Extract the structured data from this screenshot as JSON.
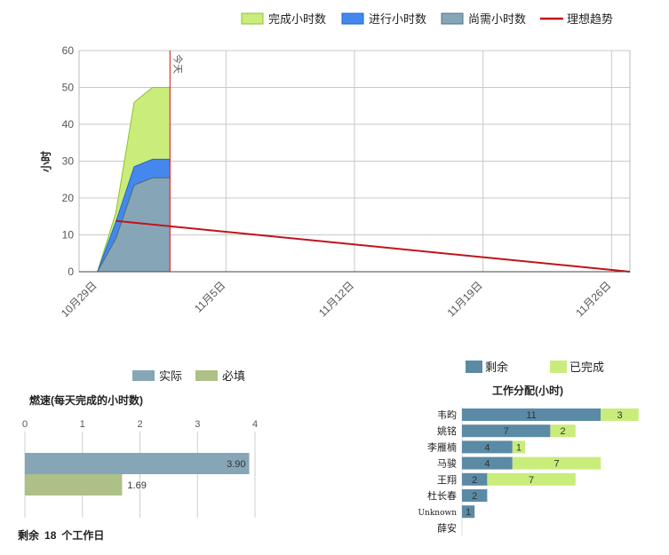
{
  "burndown": {
    "chart_data": {
      "type": "area",
      "ylabel": "小时",
      "ylim": [
        0,
        60
      ],
      "yticks": [
        0,
        10,
        20,
        30,
        40,
        50,
        60
      ],
      "xticks": [
        "10月29日",
        "11月5日",
        "11月12日",
        "11月19日",
        "11月26日"
      ],
      "xrange_days": [
        -1,
        29
      ],
      "today_label": "今天",
      "today_day": 3.95,
      "grid": true,
      "legend_position": "top-right",
      "legend": [
        {
          "label": "完成小时数",
          "color": "#c9ec7b",
          "stroke": "#8fc236",
          "kind": "area"
        },
        {
          "label": "进行小时数",
          "color": "#4488ee",
          "stroke": "#2266cc",
          "kind": "area"
        },
        {
          "label": "尚需小时数",
          "color": "#86a6b8",
          "stroke": "#4f7183",
          "kind": "area"
        },
        {
          "label": "理想趋势",
          "color": "#c0141b",
          "kind": "line"
        }
      ],
      "x_days": [
        0,
        1,
        2,
        3,
        3.95
      ],
      "series": [
        {
          "name": "尚需小时数",
          "values": [
            0,
            9,
            23.5,
            25.5,
            25.5
          ]
        },
        {
          "name": "进行小时数",
          "values": [
            0,
            4.5,
            5,
            5,
            5
          ]
        },
        {
          "name": "完成小时数",
          "values": [
            0,
            2.5,
            17.5,
            19.5,
            19.5
          ]
        }
      ],
      "ideal": {
        "x_days": [
          1,
          29
        ],
        "values": [
          13.8,
          0
        ]
      }
    }
  },
  "velocity": {
    "chart_data": {
      "type": "bar",
      "title": "燃速(每天完成的小时数)",
      "xlim": [
        0,
        4
      ],
      "xticks": [
        "0",
        "1",
        "2",
        "3",
        "4"
      ],
      "grid": true,
      "legend_position": "top",
      "series": [
        {
          "name": "实际",
          "values": [
            3.9
          ],
          "label": "3.90",
          "color": "#86a6b8"
        },
        {
          "name": "必填",
          "values": [
            1.69
          ],
          "label": "1.69",
          "color": "#adc087"
        }
      ]
    },
    "footer": {
      "prefix": "剩余",
      "days": "18",
      "suffix": "个工作日"
    }
  },
  "assignment": {
    "chart_data": {
      "type": "bar",
      "title": "工作分配(小时)",
      "stacked": true,
      "legend_position": "top",
      "unit_max": 14,
      "series_colors": {
        "remaining": "#5a8aa5",
        "completed": "#c9ec7b"
      },
      "legend": [
        {
          "label": "剩余",
          "color": "#5a8aa5"
        },
        {
          "label": "已完成",
          "color": "#c9ec7b"
        }
      ],
      "people": [
        {
          "name": "韦昀",
          "remaining": 11,
          "completed": 3,
          "remaining_label": "11",
          "completed_label": "3"
        },
        {
          "name": "姚铭",
          "remaining": 7,
          "completed": 2,
          "remaining_label": "7",
          "completed_label": "2"
        },
        {
          "name": "李雁楠",
          "remaining": 4,
          "completed": 1,
          "remaining_label": "4",
          "completed_label": "1"
        },
        {
          "name": "马骏",
          "remaining": 4,
          "completed": 7,
          "remaining_label": "4",
          "completed_label": "7"
        },
        {
          "name": "王翔",
          "remaining": 2,
          "completed": 7,
          "remaining_label": "2",
          "completed_label": "7"
        },
        {
          "name": "杜长春",
          "remaining": 2,
          "completed": 0,
          "remaining_label": "2",
          "completed_label": ""
        },
        {
          "name": "Unknown",
          "remaining": 1,
          "completed": 0,
          "remaining_label": "1",
          "completed_label": ""
        },
        {
          "name": "薛安",
          "remaining": 0,
          "completed": 0,
          "remaining_label": "",
          "completed_label": ""
        }
      ]
    }
  }
}
